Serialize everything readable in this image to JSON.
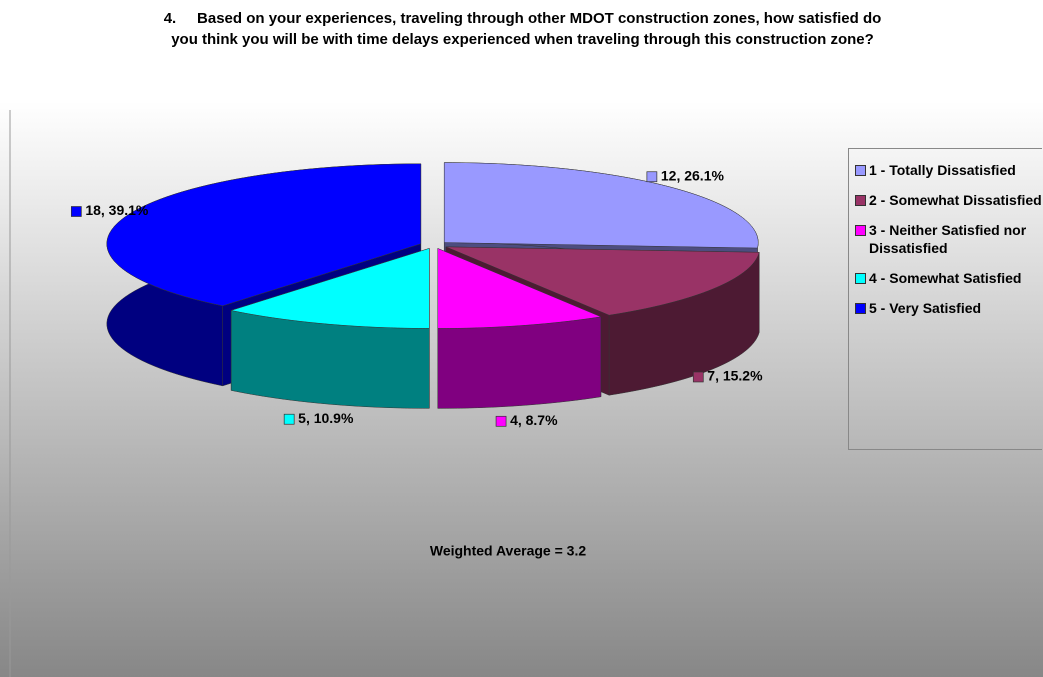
{
  "chart_data": {
    "type": "pie",
    "title": "4.     Based on your experiences, traveling through other MDOT construction zones, how satisfied do you think you will be with time delays experienced when traveling through this construction zone?",
    "categories": [
      "1 - Totally Dissatisfied",
      "2 - Somewhat Dissatisfied",
      "3 - Neither Satisfied nor Dissatisfied",
      "4 - Somewhat Satisfied",
      "5 - Very Satisfied"
    ],
    "values": [
      12,
      7,
      4,
      5,
      18
    ],
    "value_labels": [
      "12, 26.1%",
      "7, 15.2%",
      "4, 8.7%",
      "5, 10.9%",
      "18, 39.1%"
    ],
    "colors": [
      "#9999ff",
      "#993366",
      "#ff00ff",
      "#00ffff",
      "#0000ff"
    ],
    "annotation": "Weighted Average = 3.2",
    "legend": "right"
  }
}
